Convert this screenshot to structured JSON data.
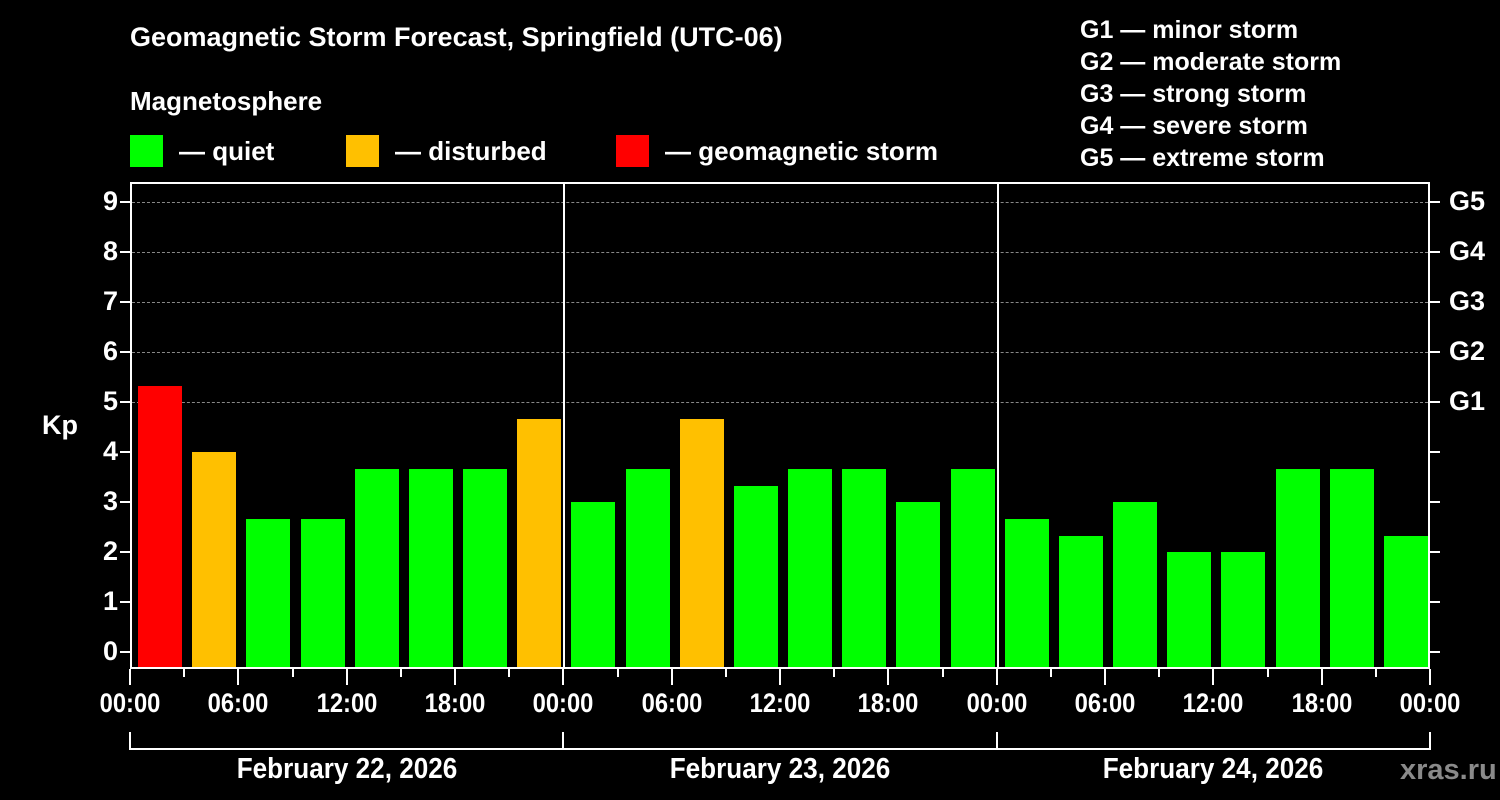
{
  "header": {
    "title": "Geomagnetic Storm Forecast, Springfield (UTC-06)",
    "subtitle": "Magnetosphere"
  },
  "legend": [
    {
      "label": "— quiet",
      "color": "#00ff00"
    },
    {
      "label": "— disturbed",
      "color": "#ffc000"
    },
    {
      "label": "— geomagnetic storm",
      "color": "#ff0000"
    }
  ],
  "storm_scale": [
    "G1 — minor storm",
    "G2 — moderate storm",
    "G3 — strong storm",
    "G4 — severe storm",
    "G5 — extreme storm"
  ],
  "axes": {
    "ylabel": "Kp",
    "yticks": [
      "0",
      "1",
      "2",
      "3",
      "4",
      "5",
      "6",
      "7",
      "8",
      "9"
    ],
    "right_ticks": [
      {
        "value": 5,
        "label": "G1"
      },
      {
        "value": 6,
        "label": "G2"
      },
      {
        "value": 7,
        "label": "G3"
      },
      {
        "value": 8,
        "label": "G4"
      },
      {
        "value": 9,
        "label": "G5"
      }
    ],
    "xticks": [
      "00:00",
      "06:00",
      "12:00",
      "18:00",
      "00:00",
      "06:00",
      "12:00",
      "18:00",
      "00:00",
      "06:00",
      "12:00",
      "18:00",
      "00:00"
    ],
    "dates": [
      "February 22, 2026",
      "February 23, 2026",
      "February 24, 2026"
    ]
  },
  "watermark": "xras.ru",
  "chart_data": {
    "type": "bar",
    "title": "Geomagnetic Storm Forecast, Springfield (UTC-06)",
    "xlabel": "",
    "ylabel": "Kp",
    "ylim": [
      0,
      9
    ],
    "grid": "dashed horizontal at Kp 5-9",
    "legend_position": "top",
    "categories": [
      "Feb 22 00:00",
      "Feb 22 03:00",
      "Feb 22 06:00",
      "Feb 22 09:00",
      "Feb 22 12:00",
      "Feb 22 15:00",
      "Feb 22 18:00",
      "Feb 22 21:00",
      "Feb 23 00:00",
      "Feb 23 03:00",
      "Feb 23 06:00",
      "Feb 23 09:00",
      "Feb 23 12:00",
      "Feb 23 15:00",
      "Feb 23 18:00",
      "Feb 23 21:00",
      "Feb 24 00:00",
      "Feb 24 03:00",
      "Feb 24 06:00",
      "Feb 24 09:00",
      "Feb 24 12:00",
      "Feb 24 15:00",
      "Feb 24 18:00",
      "Feb 24 21:00"
    ],
    "values": [
      5.33,
      4.0,
      2.67,
      2.67,
      3.67,
      3.67,
      3.67,
      4.67,
      3.0,
      3.67,
      4.67,
      3.33,
      3.67,
      3.67,
      3.0,
      3.67,
      2.67,
      2.33,
      3.0,
      2.0,
      2.0,
      3.67,
      3.67,
      2.33
    ],
    "status": [
      "storm",
      "disturbed",
      "quiet",
      "quiet",
      "quiet",
      "quiet",
      "quiet",
      "disturbed",
      "quiet",
      "quiet",
      "disturbed",
      "quiet",
      "quiet",
      "quiet",
      "quiet",
      "quiet",
      "quiet",
      "quiet",
      "quiet",
      "quiet",
      "quiet",
      "quiet",
      "quiet",
      "quiet"
    ],
    "status_colors": {
      "quiet": "#00ff00",
      "disturbed": "#ffc000",
      "storm": "#ff0000"
    }
  }
}
